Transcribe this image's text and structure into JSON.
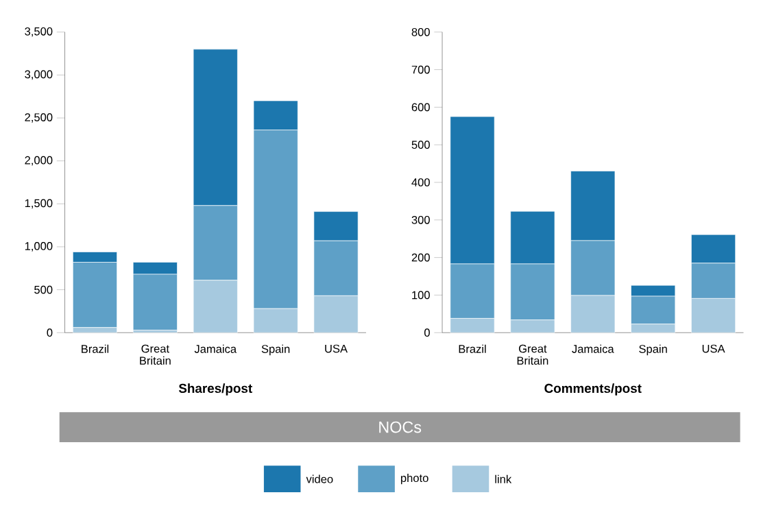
{
  "chart_data": [
    {
      "type": "bar",
      "stacked": true,
      "xlabel": "Shares/post",
      "categories": [
        "Brazil",
        "Great Britain",
        "Jamaica",
        "Spain",
        "USA"
      ],
      "series": [
        {
          "name": "link",
          "color": "#a6c9df",
          "values": [
            60,
            30,
            610,
            280,
            430
          ]
        },
        {
          "name": "photo",
          "color": "#5ea0c7",
          "values": [
            760,
            650,
            870,
            2080,
            640
          ]
        },
        {
          "name": "video",
          "color": "#1c77ae",
          "values": [
            120,
            140,
            1820,
            340,
            340
          ]
        }
      ],
      "ylim": [
        0,
        3500
      ],
      "yticks": [
        0,
        {
          "value": 500,
          "label": "500"
        },
        {
          "value": 1000,
          "label": "1,000"
        },
        {
          "value": 1500,
          "label": "1,500"
        },
        {
          "value": 2000,
          "label": "2,000"
        },
        {
          "value": 2500,
          "label": "2,500"
        },
        {
          "value": 3000,
          "label": "3,000"
        },
        {
          "value": 3500,
          "label": "3,500"
        }
      ],
      "legend": "bottom",
      "annotations": [
        "NOCs"
      ]
    },
    {
      "type": "bar",
      "stacked": true,
      "xlabel": "Comments/post",
      "categories": [
        "Brazil",
        "Great Britain",
        "Jamaica",
        "Spain",
        "USA"
      ],
      "series": [
        {
          "color": "#a6c9df",
          "values": [
            38,
            34,
            99,
            23,
            91
          ]
        },
        {
          "color": "#5ea0c7",
          "values": [
            145,
            149,
            146,
            74,
            94
          ]
        },
        {
          "color": "#1c77ae",
          "values": [
            392,
            140,
            185,
            29,
            76
          ]
        }
      ],
      "ylim": [
        0,
        800
      ],
      "yticks": [
        0,
        100,
        200,
        300,
        400,
        500,
        600,
        700,
        800
      ]
    }
  ]
}
